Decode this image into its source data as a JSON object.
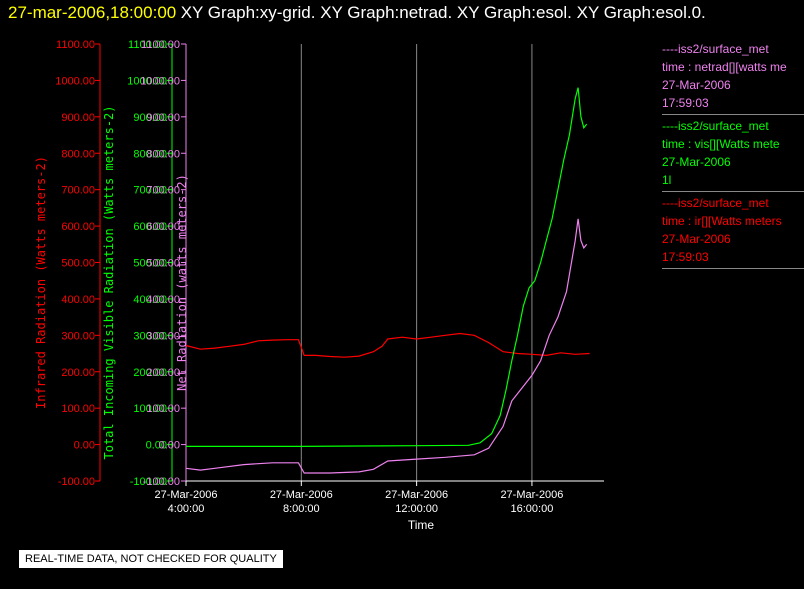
{
  "header": {
    "date": "27-mar-2006,18:00:00",
    "graphs": "XY Graph:xy-grid.  XY Graph:netrad.  XY Graph:esol.  XY Graph:esol.0."
  },
  "legend": [
    {
      "source": "----iss2/surface_met",
      "desc": "time : netrad[][watts me",
      "date": "27-Mar-2006",
      "time": "17:59:03",
      "color": "#ee82ee"
    },
    {
      "source": "----iss2/surface_met",
      "desc": "time : vis[][Watts mete",
      "date": "27-Mar-2006",
      "time": "1l",
      "color": "#00ff00"
    },
    {
      "source": "----iss2/surface_met",
      "desc": "time : ir[][Watts meters",
      "date": "27-Mar-2006",
      "time": "17:59:03",
      "color": "#ff0000"
    }
  ],
  "note": "REAL-TIME DATA, NOT CHECKED FOR QUALITY",
  "chart_data": {
    "type": "line",
    "xlabel": "Time",
    "x_ticks": [
      {
        "date": "27-Mar-2006",
        "time": "4:00:00",
        "hour": 4
      },
      {
        "date": "27-Mar-2006",
        "time": "8:00:00",
        "hour": 8
      },
      {
        "date": "27-Mar-2006",
        "time": "12:00:00",
        "hour": 12
      },
      {
        "date": "27-Mar-2006",
        "time": "16:00:00",
        "hour": 16
      }
    ],
    "xlim_hours": [
      4,
      18.5
    ],
    "ylim": [
      -100,
      1100
    ],
    "y_ticks": [
      "1100.00",
      "1000.00",
      "900.00",
      "800.00",
      "700.00",
      "600.00",
      "500.00",
      "400.00",
      "300.00",
      "200.00",
      "100.00",
      "0.00",
      "-100.00"
    ],
    "axes": [
      {
        "label": "Infrared Radiation (Watts meters-2)",
        "color": "#ff0000"
      },
      {
        "label": "Total Incoming Visible Radiation (Watts meters-2)",
        "color": "#00ff00"
      },
      {
        "label": "Net Radiation (watts meters-2)",
        "color": "#ee82ee"
      }
    ],
    "grid": "vertical",
    "series": [
      {
        "name": "ir",
        "color": "#ff0000",
        "points": [
          [
            4.0,
            272
          ],
          [
            4.5,
            262
          ],
          [
            5.0,
            265
          ],
          [
            5.5,
            270
          ],
          [
            6.0,
            275
          ],
          [
            6.5,
            285
          ],
          [
            7.0,
            287
          ],
          [
            7.5,
            288
          ],
          [
            7.9,
            288
          ],
          [
            8.1,
            245
          ],
          [
            8.5,
            245
          ],
          [
            9.0,
            242
          ],
          [
            9.5,
            240
          ],
          [
            10.0,
            243
          ],
          [
            10.5,
            255
          ],
          [
            10.8,
            270
          ],
          [
            11.0,
            290
          ],
          [
            11.5,
            295
          ],
          [
            12.0,
            290
          ],
          [
            12.5,
            295
          ],
          [
            13.0,
            300
          ],
          [
            13.5,
            305
          ],
          [
            14.0,
            300
          ],
          [
            14.5,
            280
          ],
          [
            15.0,
            255
          ],
          [
            15.5,
            250
          ],
          [
            16.0,
            248
          ],
          [
            16.5,
            245
          ],
          [
            17.0,
            252
          ],
          [
            17.5,
            248
          ],
          [
            18.0,
            250
          ]
        ]
      },
      {
        "name": "vis",
        "color": "#00ff00",
        "points": [
          [
            4.0,
            -5
          ],
          [
            6.0,
            -5
          ],
          [
            8.0,
            -5
          ],
          [
            10.0,
            -4
          ],
          [
            12.0,
            -3
          ],
          [
            13.8,
            -2
          ],
          [
            14.2,
            5
          ],
          [
            14.6,
            30
          ],
          [
            14.9,
            80
          ],
          [
            15.1,
            150
          ],
          [
            15.3,
            230
          ],
          [
            15.5,
            300
          ],
          [
            15.7,
            380
          ],
          [
            15.9,
            430
          ],
          [
            16.1,
            450
          ],
          [
            16.3,
            500
          ],
          [
            16.5,
            560
          ],
          [
            16.7,
            620
          ],
          [
            16.9,
            700
          ],
          [
            17.1,
            780
          ],
          [
            17.3,
            850
          ],
          [
            17.5,
            950
          ],
          [
            17.6,
            980
          ],
          [
            17.7,
            900
          ],
          [
            17.8,
            870
          ],
          [
            17.9,
            880
          ]
        ]
      },
      {
        "name": "netrad",
        "color": "#ee82ee",
        "points": [
          [
            4.0,
            -65
          ],
          [
            4.5,
            -70
          ],
          [
            5.0,
            -65
          ],
          [
            6.0,
            -55
          ],
          [
            7.0,
            -50
          ],
          [
            7.9,
            -50
          ],
          [
            8.1,
            -78
          ],
          [
            9.0,
            -78
          ],
          [
            10.0,
            -75
          ],
          [
            10.5,
            -68
          ],
          [
            11.0,
            -45
          ],
          [
            12.0,
            -40
          ],
          [
            13.0,
            -35
          ],
          [
            14.0,
            -28
          ],
          [
            14.5,
            -10
          ],
          [
            15.0,
            50
          ],
          [
            15.3,
            120
          ],
          [
            15.6,
            150
          ],
          [
            16.0,
            190
          ],
          [
            16.3,
            230
          ],
          [
            16.6,
            300
          ],
          [
            16.9,
            350
          ],
          [
            17.2,
            420
          ],
          [
            17.5,
            560
          ],
          [
            17.6,
            620
          ],
          [
            17.7,
            560
          ],
          [
            17.8,
            540
          ],
          [
            17.9,
            550
          ]
        ]
      }
    ]
  }
}
